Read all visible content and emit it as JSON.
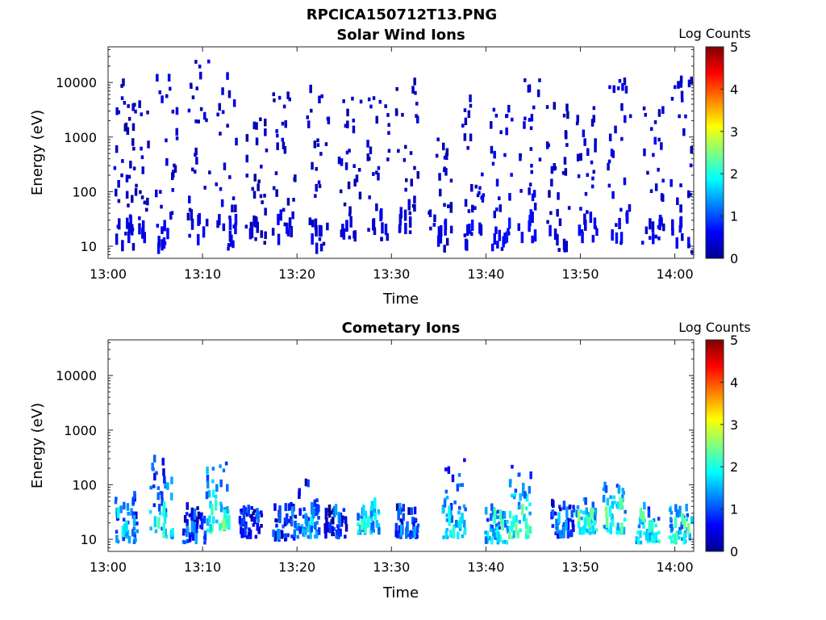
{
  "figure_title": "RPCICA150712T13.PNG",
  "chart_data": [
    {
      "type": "heatmap",
      "title": "Solar Wind Ions",
      "xlabel": "Time",
      "ylabel": "Energy (eV)",
      "x_ticks": [
        "13:00",
        "13:10",
        "13:20",
        "13:30",
        "13:40",
        "13:50",
        "14:00"
      ],
      "x_range_minutes": [
        0,
        62
      ],
      "y_scale": "log",
      "y_ticks": [
        10,
        100,
        1000,
        10000
      ],
      "y_tick_labels": [
        "10",
        "100",
        "1000",
        "10000"
      ],
      "y_range": [
        6,
        45000
      ],
      "colorbar": {
        "label": "Log Counts",
        "range": [
          0,
          5
        ],
        "ticks": [
          "0",
          "1",
          "2",
          "3",
          "4",
          "5"
        ],
        "colormap": "jet"
      },
      "colors": {
        "low": "#00008f",
        "mid": "#00ffff",
        "high": "#800000"
      },
      "bursts": [
        {
          "t": 1.5,
          "e_lo": 8,
          "e_hi": 12000,
          "level": 0.3
        },
        {
          "t": 3.0,
          "e_lo": 8,
          "e_hi": 4000,
          "level": 0.3
        },
        {
          "t": 6.0,
          "e_lo": 7,
          "e_hi": 12000,
          "level": 0.4
        },
        {
          "t": 9.5,
          "e_lo": 10,
          "e_hi": 30000,
          "level": 0.35
        },
        {
          "t": 12.5,
          "e_lo": 8,
          "e_hi": 12000,
          "level": 0.4
        },
        {
          "t": 15.5,
          "e_lo": 10,
          "e_hi": 2500,
          "level": 0.25
        },
        {
          "t": 18.5,
          "e_lo": 10,
          "e_hi": 10000,
          "level": 0.35
        },
        {
          "t": 22.0,
          "e_lo": 7,
          "e_hi": 8000,
          "level": 0.35
        },
        {
          "t": 25.5,
          "e_lo": 8,
          "e_hi": 6000,
          "level": 0.3
        },
        {
          "t": 28.5,
          "e_lo": 12,
          "e_hi": 8000,
          "level": 0.35
        },
        {
          "t": 31.5,
          "e_lo": 15,
          "e_hi": 10000,
          "level": 0.3
        },
        {
          "t": 35.0,
          "e_lo": 7,
          "e_hi": 1500,
          "level": 0.3
        },
        {
          "t": 38.5,
          "e_lo": 7,
          "e_hi": 9000,
          "level": 0.4
        },
        {
          "t": 41.5,
          "e_lo": 8,
          "e_hi": 3000,
          "level": 0.45
        },
        {
          "t": 44.5,
          "e_lo": 10,
          "e_hi": 15000,
          "level": 0.45
        },
        {
          "t": 47.5,
          "e_lo": 7,
          "e_hi": 8000,
          "level": 0.3
        },
        {
          "t": 50.5,
          "e_lo": 10,
          "e_hi": 4000,
          "level": 0.4
        },
        {
          "t": 54.0,
          "e_lo": 10,
          "e_hi": 10000,
          "level": 0.45
        },
        {
          "t": 57.5,
          "e_lo": 10,
          "e_hi": 3500,
          "level": 0.4
        },
        {
          "t": 60.5,
          "e_lo": 7,
          "e_hi": 10000,
          "level": 0.45
        }
      ]
    },
    {
      "type": "heatmap",
      "title": "Cometary Ions",
      "xlabel": "Time",
      "ylabel": "Energy (eV)",
      "x_ticks": [
        "13:00",
        "13:10",
        "13:20",
        "13:30",
        "13:40",
        "13:50",
        "14:00"
      ],
      "x_range_minutes": [
        0,
        62
      ],
      "y_scale": "log",
      "y_ticks": [
        10,
        100,
        1000,
        10000
      ],
      "y_tick_labels": [
        "10",
        "100",
        "1000",
        "10000"
      ],
      "y_range": [
        6,
        45000
      ],
      "colorbar": {
        "label": "Log Counts",
        "range": [
          0,
          5
        ],
        "ticks": [
          "0",
          "1",
          "2",
          "3",
          "4",
          "5"
        ],
        "colormap": "jet"
      },
      "bursts": [
        {
          "t": 1.8,
          "e_lo": 8,
          "e_hi": 70,
          "level": 1.2
        },
        {
          "t": 5.5,
          "e_lo": 10,
          "e_hi": 270,
          "level": 1.6
        },
        {
          "t": 9.0,
          "e_lo": 8,
          "e_hi": 35,
          "level": 0.8
        },
        {
          "t": 11.5,
          "e_lo": 12,
          "e_hi": 230,
          "level": 1.9
        },
        {
          "t": 15.0,
          "e_lo": 10,
          "e_hi": 35,
          "level": 0.7
        },
        {
          "t": 18.5,
          "e_lo": 9,
          "e_hi": 35,
          "level": 0.8
        },
        {
          "t": 21.0,
          "e_lo": 10,
          "e_hi": 100,
          "level": 1.2
        },
        {
          "t": 24.0,
          "e_lo": 10,
          "e_hi": 35,
          "level": 0.7
        },
        {
          "t": 27.5,
          "e_lo": 12,
          "e_hi": 40,
          "level": 1.6
        },
        {
          "t": 31.5,
          "e_lo": 10,
          "e_hi": 35,
          "level": 0.8
        },
        {
          "t": 36.5,
          "e_lo": 10,
          "e_hi": 280,
          "level": 1.6
        },
        {
          "t": 41.0,
          "e_lo": 8,
          "e_hi": 35,
          "level": 1.5
        },
        {
          "t": 43.5,
          "e_lo": 10,
          "e_hi": 200,
          "level": 1.9
        },
        {
          "t": 48.0,
          "e_lo": 10,
          "e_hi": 40,
          "level": 0.9
        },
        {
          "t": 50.5,
          "e_lo": 12,
          "e_hi": 50,
          "level": 1.8
        },
        {
          "t": 53.5,
          "e_lo": 12,
          "e_hi": 90,
          "level": 1.8
        },
        {
          "t": 57.0,
          "e_lo": 8,
          "e_hi": 35,
          "level": 1.6
        },
        {
          "t": 60.5,
          "e_lo": 8,
          "e_hi": 35,
          "level": 1.7
        }
      ]
    }
  ]
}
